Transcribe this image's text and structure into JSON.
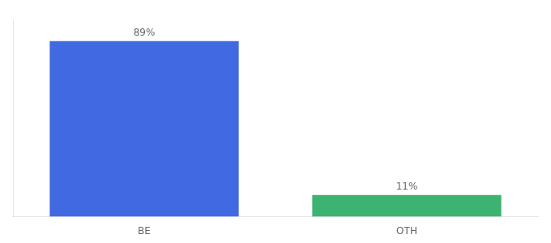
{
  "chart_data": {
    "type": "bar",
    "categories": [
      "BE",
      "OTH"
    ],
    "values": [
      89,
      11
    ],
    "value_labels": [
      "89%",
      "11%"
    ],
    "data_labels": true,
    "colors": [
      "#4169E1",
      "#3CB371"
    ],
    "ylim": [
      0,
      100
    ],
    "grid": false,
    "tick_labels": "x"
  }
}
